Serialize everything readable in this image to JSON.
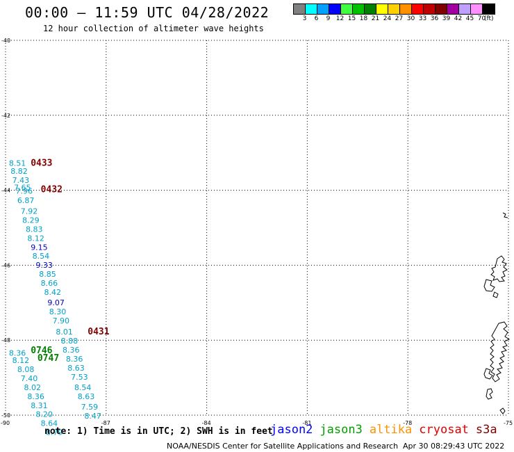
{
  "header": {
    "title": "00:00 – 11:59 UTC 04/28/2022",
    "subtitle": "12 hour collection of altimeter wave heights"
  },
  "legend": {
    "unit": "(ft)",
    "bins": [
      {
        "label": "3",
        "color": "#808080"
      },
      {
        "label": "6",
        "color": "#00ffff"
      },
      {
        "label": "9",
        "color": "#00a0ff"
      },
      {
        "label": "12",
        "color": "#0000ff"
      },
      {
        "label": "15",
        "color": "#40ff40"
      },
      {
        "label": "18",
        "color": "#00c000"
      },
      {
        "label": "21",
        "color": "#008000"
      },
      {
        "label": "24",
        "color": "#ffff00"
      },
      {
        "label": "27",
        "color": "#ffd000"
      },
      {
        "label": "30",
        "color": "#ff9000"
      },
      {
        "label": "33",
        "color": "#ff0000"
      },
      {
        "label": "36",
        "color": "#c00000"
      },
      {
        "label": "39",
        "color": "#800000"
      },
      {
        "label": "42",
        "color": "#a000a0"
      },
      {
        "label": "45",
        "color": "#c0a0ff"
      },
      {
        "label": "70",
        "color": "#ff90ff"
      },
      {
        "label": "",
        "color": "#000000"
      }
    ]
  },
  "map": {
    "lat_ticks": [
      "-40",
      "-42",
      "-44",
      "-46",
      "-48",
      "-50"
    ],
    "lon_ticks": [
      "-90",
      "-87",
      "-84",
      "-81",
      "-78",
      "-75"
    ],
    "lat_range": [
      -50,
      -40
    ],
    "lon_range": [
      -90,
      -75
    ],
    "colors": {
      "cyan": "#00a0c8",
      "blue": "#0000c8",
      "maroon": "#800000",
      "green": "#008000"
    },
    "pass_times": [
      {
        "label": "0433",
        "lon": -89.25,
        "lat": -43.35,
        "color": "maroon"
      },
      {
        "label": "0432",
        "lon": -88.95,
        "lat": -44.05,
        "color": "maroon"
      },
      {
        "label": "0431",
        "lon": -87.55,
        "lat": -47.85,
        "color": "maroon"
      },
      {
        "label": "0746",
        "lon": -89.25,
        "lat": -48.35,
        "color": "green"
      },
      {
        "label": "0747",
        "lon": -89.05,
        "lat": -48.55,
        "color": "green"
      }
    ],
    "wave_heights": [
      {
        "label": "8.51",
        "lon": -89.9,
        "lat": -43.35,
        "color": "cyan"
      },
      {
        "label": "8.82",
        "lon": -89.85,
        "lat": -43.56,
        "color": "cyan"
      },
      {
        "label": "7.43",
        "lon": -89.8,
        "lat": -43.8,
        "color": "cyan"
      },
      {
        "label": "7.65",
        "lon": -89.75,
        "lat": -44.0,
        "color": "cyan"
      },
      {
        "label": "7.96",
        "lon": -89.7,
        "lat": -44.09,
        "color": "cyan"
      },
      {
        "label": "6.87",
        "lon": -89.65,
        "lat": -44.34,
        "color": "cyan"
      },
      {
        "label": "7.92",
        "lon": -89.55,
        "lat": -44.63,
        "color": "cyan"
      },
      {
        "label": "8.29",
        "lon": -89.5,
        "lat": -44.87,
        "color": "cyan"
      },
      {
        "label": "8.83",
        "lon": -89.4,
        "lat": -45.11,
        "color": "cyan"
      },
      {
        "label": "8.12",
        "lon": -89.35,
        "lat": -45.35,
        "color": "cyan"
      },
      {
        "label": "9.15",
        "lon": -89.25,
        "lat": -45.59,
        "color": "blue"
      },
      {
        "label": "8.54",
        "lon": -89.2,
        "lat": -45.83,
        "color": "cyan"
      },
      {
        "label": "9.33",
        "lon": -89.1,
        "lat": -46.07,
        "color": "blue"
      },
      {
        "label": "8.85",
        "lon": -89.0,
        "lat": -46.31,
        "color": "cyan"
      },
      {
        "label": "8.66",
        "lon": -88.95,
        "lat": -46.55,
        "color": "cyan"
      },
      {
        "label": "8.42",
        "lon": -88.85,
        "lat": -46.79,
        "color": "cyan"
      },
      {
        "label": "9.07",
        "lon": -88.75,
        "lat": -47.07,
        "color": "blue"
      },
      {
        "label": "8.30",
        "lon": -88.7,
        "lat": -47.31,
        "color": "cyan"
      },
      {
        "label": "7.90",
        "lon": -88.6,
        "lat": -47.55,
        "color": "cyan"
      },
      {
        "label": "8.01",
        "lon": -88.5,
        "lat": -47.85,
        "color": "cyan"
      },
      {
        "label": "8.88",
        "lon": -88.35,
        "lat": -48.09,
        "color": "cyan"
      },
      {
        "label": "8.36",
        "lon": -88.3,
        "lat": -48.33,
        "color": "cyan"
      },
      {
        "label": "8.36",
        "lon": -88.2,
        "lat": -48.57,
        "color": "cyan"
      },
      {
        "label": "8.63",
        "lon": -88.15,
        "lat": -48.81,
        "color": "cyan"
      },
      {
        "label": "7.53",
        "lon": -88.05,
        "lat": -49.05,
        "color": "cyan"
      },
      {
        "label": "8.54",
        "lon": -87.95,
        "lat": -49.33,
        "color": "cyan"
      },
      {
        "label": "8.63",
        "lon": -87.85,
        "lat": -49.57,
        "color": "cyan"
      },
      {
        "label": "7.59",
        "lon": -87.75,
        "lat": -49.85,
        "color": "cyan"
      },
      {
        "label": "8.47",
        "lon": -87.65,
        "lat": -50.09,
        "color": "cyan"
      },
      {
        "label": "8.36",
        "lon": -89.9,
        "lat": -48.41,
        "color": "cyan"
      },
      {
        "label": "8.12",
        "lon": -89.8,
        "lat": -48.61,
        "color": "cyan"
      },
      {
        "label": "8.08",
        "lon": -89.65,
        "lat": -48.85,
        "color": "cyan"
      },
      {
        "label": "7.40",
        "lon": -89.55,
        "lat": -49.09,
        "color": "cyan"
      },
      {
        "label": "8.02",
        "lon": -89.45,
        "lat": -49.33,
        "color": "cyan"
      },
      {
        "label": "8.36",
        "lon": -89.35,
        "lat": -49.57,
        "color": "cyan"
      },
      {
        "label": "8.31",
        "lon": -89.25,
        "lat": -49.81,
        "color": "cyan"
      },
      {
        "label": "8.20",
        "lon": -89.1,
        "lat": -50.05,
        "color": "cyan"
      },
      {
        "label": "8.64",
        "lon": -88.95,
        "lat": -50.29,
        "color": "cyan"
      },
      {
        "label": "8.79",
        "lon": -88.8,
        "lat": -50.53,
        "color": "cyan"
      }
    ]
  },
  "note": "note: 1) Time is in UTC; 2) SWH is in feet",
  "satellites": [
    {
      "name": "jason2",
      "color": "#0000ff"
    },
    {
      "name": "jason3",
      "color": "#00a000"
    },
    {
      "name": "altika",
      "color": "#ff9000"
    },
    {
      "name": "cryosat",
      "color": "#e00000"
    },
    {
      "name": "s3a",
      "color": "#800000"
    }
  ],
  "footer": {
    "credit": "NOAA/NESDIS Center for Satellite Applications and Research",
    "generated": "Apr 30 08:29:43 UTC 2022"
  }
}
